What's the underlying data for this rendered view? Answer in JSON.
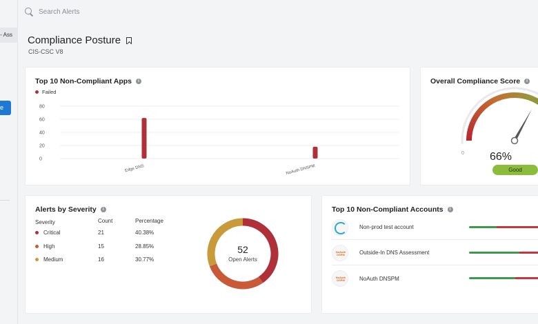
{
  "sidebar": {
    "tab_label": "s - Ass",
    "button_label": "e"
  },
  "search": {
    "placeholder": "Search Alerts"
  },
  "page": {
    "title": "Compliance Posture",
    "subtitle": "CIS-CSC V8"
  },
  "apps_card": {
    "title": "Top 10 Non-Compliant Apps",
    "chart_data": {
      "type": "bar",
      "categories": [
        "Edge DNS",
        "NoAuth DNSPM"
      ],
      "series": [
        {
          "name": "Failed",
          "values": [
            62,
            18
          ],
          "color": "#b0303a"
        }
      ],
      "ylim": [
        0,
        80
      ],
      "yticks": [
        0,
        20,
        40,
        60,
        80
      ],
      "grid": true,
      "legend": "top-left"
    }
  },
  "score_card": {
    "title": "Overall Compliance Score",
    "gauge_min": "0",
    "value_text": "66%",
    "value": 66,
    "status": "Good"
  },
  "severity_card": {
    "title": "Alerts by Severity",
    "headers": {
      "severity": "Severity",
      "count": "Count",
      "percentage": "Percentage"
    },
    "rows": [
      {
        "label": "Critical",
        "count": "21",
        "pct": "40.38%",
        "color": "#b0303a",
        "value": 21
      },
      {
        "label": "High",
        "count": "15",
        "pct": "28.85%",
        "color": "#c85a38",
        "value": 15
      },
      {
        "label": "Medium",
        "count": "16",
        "pct": "30.77%",
        "color": "#c89a3a",
        "value": 16
      }
    ],
    "total": "52",
    "total_label": "Open Alerts"
  },
  "accounts_card": {
    "title": "Top 10 Non-Compliant Accounts",
    "rows": [
      {
        "name": "Non-prod test account",
        "logo": "Infoblox",
        "pass_fraction": 0.33
      },
      {
        "name": "Outside-In DNS Assessment",
        "logo": "NoAuth DSPM",
        "pass_fraction": 0.6
      },
      {
        "name": "NoAuth DNSPM",
        "logo": "NoAuth DSPM",
        "pass_fraction": 0.55
      }
    ],
    "colors": {
      "pass": "#3d9a4c",
      "fail": "#c8353c"
    }
  }
}
